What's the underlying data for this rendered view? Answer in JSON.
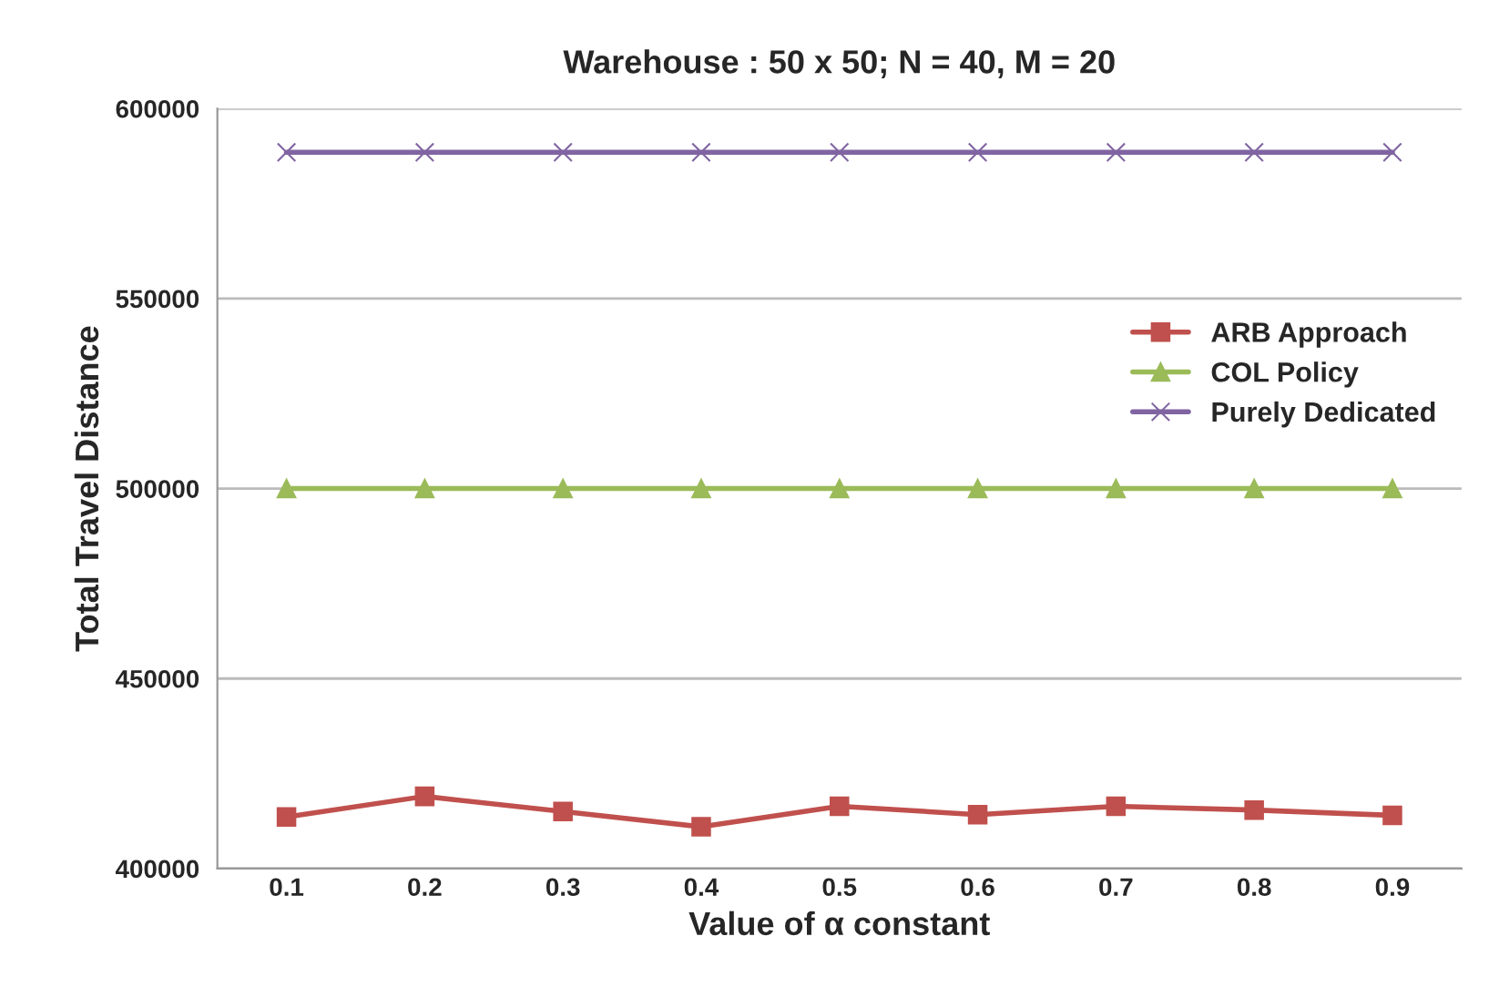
{
  "chart_data": {
    "type": "line",
    "title": "Warehouse : 50 x 50; N = 40, M = 20",
    "xlabel": "Value of α constant",
    "ylabel": "Total Travel Distance",
    "categories": [
      "0.1",
      "0.2",
      "0.3",
      "0.4",
      "0.5",
      "0.6",
      "0.7",
      "0.8",
      "0.9"
    ],
    "series": [
      {
        "name": "ARB Approach",
        "color": "#c0504d",
        "marker": "square",
        "values": [
          413600,
          419000,
          415000,
          411000,
          416400,
          414200,
          416400,
          415400,
          414000
        ]
      },
      {
        "name": "COL Policy",
        "color": "#9bbb59",
        "marker": "triangle",
        "values": [
          500000,
          500000,
          500000,
          500000,
          500000,
          500000,
          500000,
          500000,
          500000
        ]
      },
      {
        "name": "Purely Dedicated",
        "color": "#8064a2",
        "marker": "cross",
        "values": [
          588500,
          588500,
          588500,
          588500,
          588500,
          588500,
          588500,
          588500,
          588500
        ]
      }
    ],
    "ylim": [
      400000,
      600000
    ],
    "yticks": [
      400000,
      450000,
      500000,
      550000,
      600000
    ],
    "grid": "y",
    "legend": "center right"
  }
}
